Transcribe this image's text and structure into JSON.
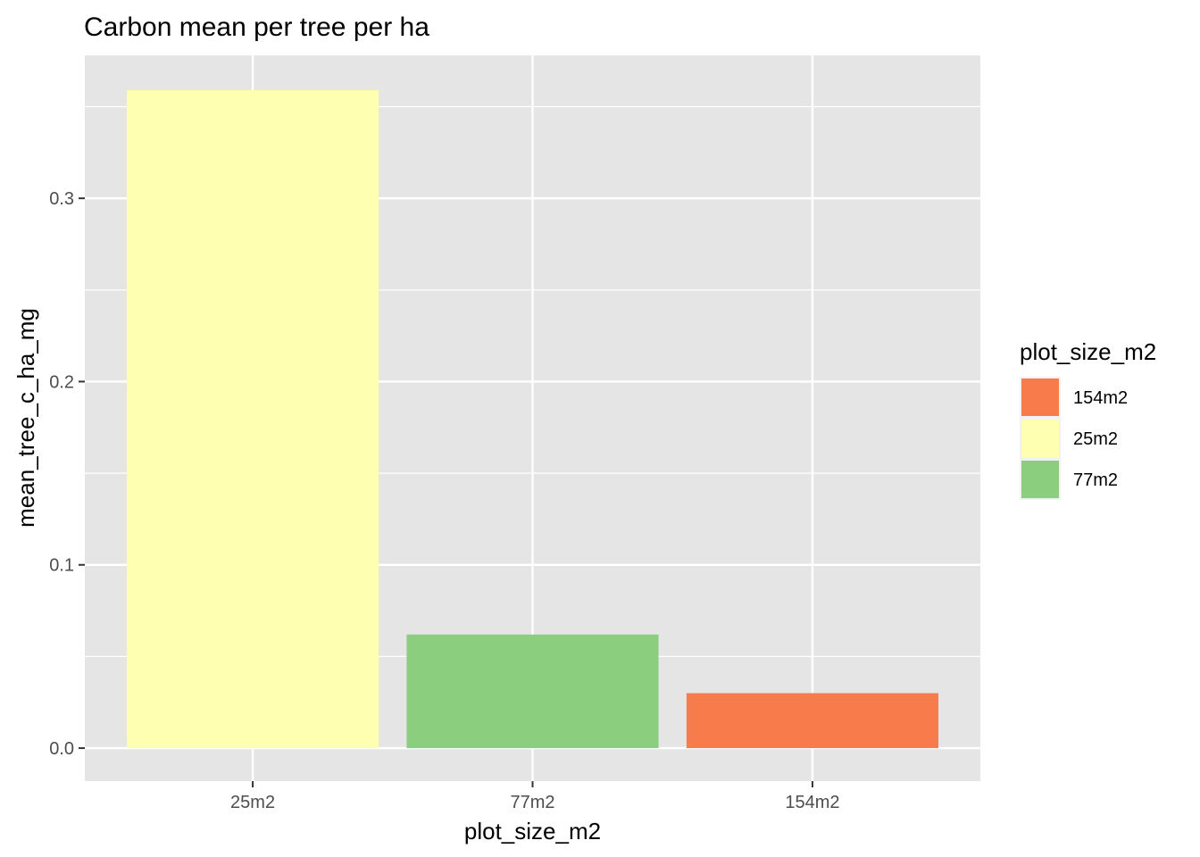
{
  "chart_data": {
    "type": "bar",
    "title": "Carbon mean per tree per ha",
    "xlabel": "plot_size_m2",
    "ylabel": "mean_tree_c_ha_mg",
    "categories": [
      "25m2",
      "77m2",
      "154m2"
    ],
    "values": [
      0.359,
      0.062,
      0.03
    ],
    "bar_colors": [
      "#FFFFB2",
      "#8ACE7E",
      "#F87C4B"
    ],
    "ylim": [
      -0.018,
      0.378
    ],
    "yticks": [
      0.0,
      0.1,
      0.2,
      0.3
    ],
    "ytick_labels": [
      "0.0",
      "0.1",
      "0.2",
      "0.3"
    ],
    "grid": true,
    "panel_background": "#E5E5E5",
    "legend": {
      "title": "plot_size_m2",
      "position": "right",
      "entries": [
        {
          "label": "154m2",
          "color": "#F87C4B"
        },
        {
          "label": "25m2",
          "color": "#FFFFB2"
        },
        {
          "label": "77m2",
          "color": "#8ACE7E"
        }
      ]
    }
  }
}
